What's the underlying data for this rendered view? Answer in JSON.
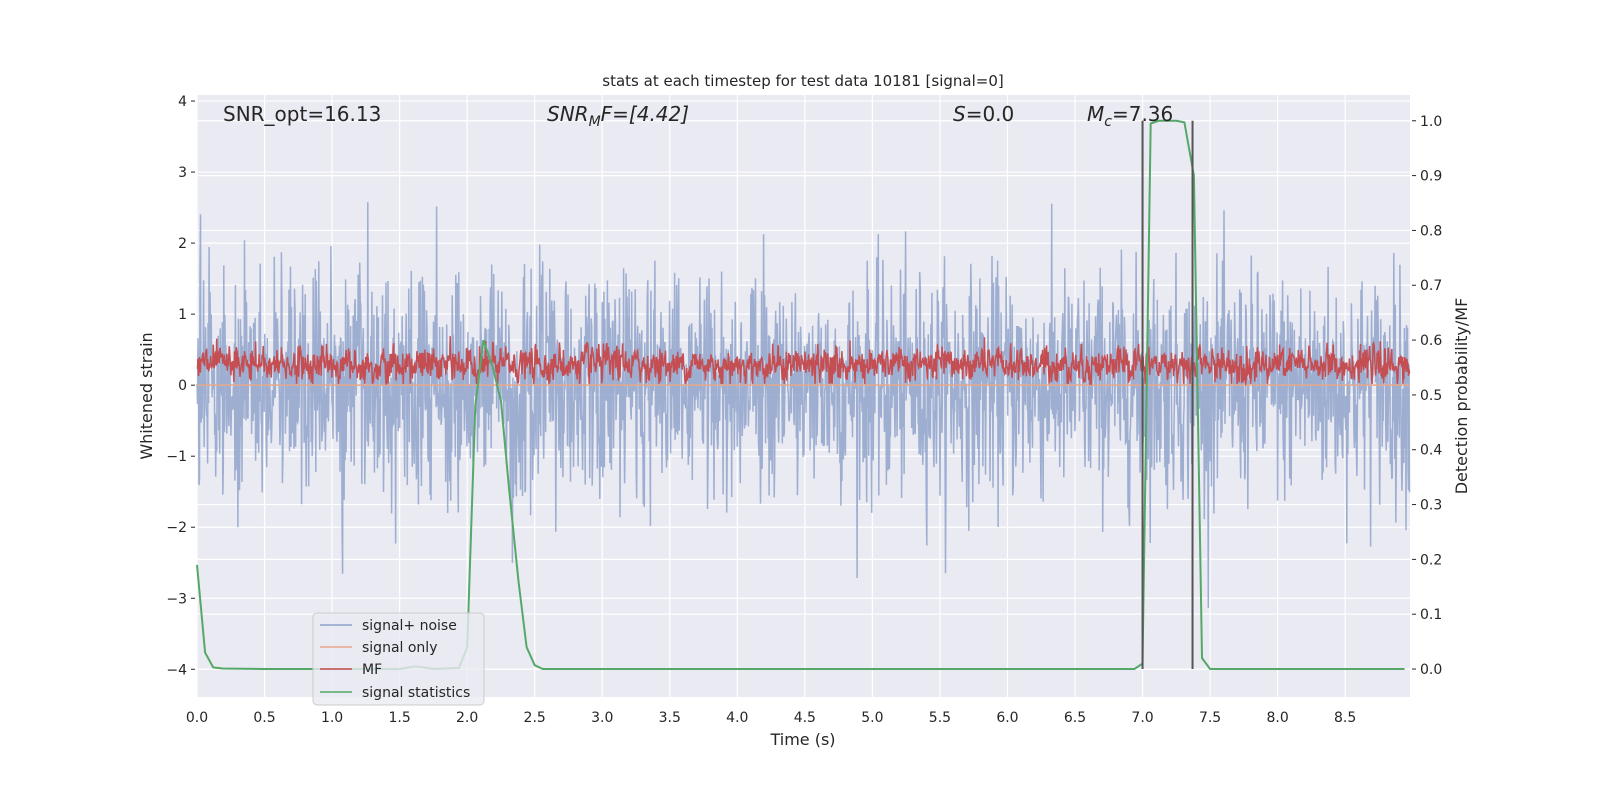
{
  "chart_data": {
    "type": "line",
    "title": "stats at each timestep for test data 10181 [signal=0]",
    "xlabel": "Time (s)",
    "ylabel": "Whitened strain",
    "ylabel_right": "Detection probability/MF",
    "xlim": [
      0.0,
      8.98
    ],
    "ylim": [
      -4.39,
      4.085
    ],
    "ylim_right": [
      -0.051,
      1.047
    ],
    "xticks": [
      "0.0",
      "0.5",
      "1.0",
      "1.5",
      "2.0",
      "2.5",
      "3.0",
      "3.5",
      "4.0",
      "4.5",
      "5.0",
      "5.5",
      "6.0",
      "6.5",
      "7.0",
      "7.5",
      "8.0",
      "8.5"
    ],
    "yticks": [
      "4",
      "3",
      "2",
      "1",
      "0",
      "−1",
      "−2",
      "−3",
      "−4"
    ],
    "yticks_right": [
      "1.0",
      "0.9",
      "0.8",
      "0.7",
      "0.6",
      "0.5",
      "0.4",
      "0.3",
      "0.2",
      "0.1",
      "0.0"
    ],
    "grid": true,
    "annotations": {
      "snr_opt": "SNR_opt=16.13",
      "snr_mf_italic": "SNR",
      "snr_mf_sub": "M",
      "snr_mf_rest": "F=[4.42]",
      "s_italic": "S",
      "s_rest": "=0.0",
      "mc_italic": "M",
      "mc_sub": "c",
      "mc_rest": "=7.36"
    },
    "legend": {
      "placement": "lower-left",
      "entries": [
        "signal+ noise",
        "signal only",
        "MF",
        "signal statistics"
      ]
    },
    "colors": {
      "noise": "#8fa3cb",
      "signal": "#e8a88a",
      "mf": "#c44e52",
      "stats": "#55a868",
      "vline": "#555555",
      "background": "#eaeaf2"
    },
    "series": [
      {
        "name": "signal+ noise",
        "axis": "left",
        "kind": "noise",
        "mean": 0.0,
        "std": 0.78,
        "samples": 2400
      },
      {
        "name": "signal only",
        "axis": "left",
        "x": [
          0,
          8.98
        ],
        "y": [
          0,
          0
        ]
      },
      {
        "name": "MF",
        "axis": "right",
        "kind": "noise",
        "floor": 0.52,
        "mean": 0.555,
        "max": 0.64,
        "samples": 2400
      },
      {
        "name": "signal statistics",
        "axis": "right",
        "x": [
          0,
          0.06,
          0.12,
          0.19,
          0.5,
          1.0,
          1.5,
          1.62,
          1.75,
          1.94,
          2.0,
          2.06,
          2.12,
          2.19,
          2.25,
          2.31,
          2.38,
          2.44,
          2.5,
          2.56,
          3.0,
          4.0,
          5.0,
          6.0,
          6.94,
          7.0,
          7.06,
          7.12,
          7.19,
          7.25,
          7.31,
          7.38,
          7.44,
          7.5,
          8.0,
          8.94
        ],
        "y": [
          0.19,
          0.03,
          0.003,
          0.001,
          0.0,
          0.0,
          0.0,
          0.005,
          0.0,
          0.002,
          0.04,
          0.48,
          0.6,
          0.55,
          0.49,
          0.33,
          0.16,
          0.04,
          0.007,
          0.0,
          0.0,
          0.0,
          0.0,
          0.0,
          0.0,
          0.01,
          0.995,
          1.0,
          1.0,
          1.0,
          0.997,
          0.9,
          0.02,
          0.0,
          0.0,
          0.0
        ]
      }
    ],
    "vlines": [
      7.0,
      7.37
    ]
  }
}
